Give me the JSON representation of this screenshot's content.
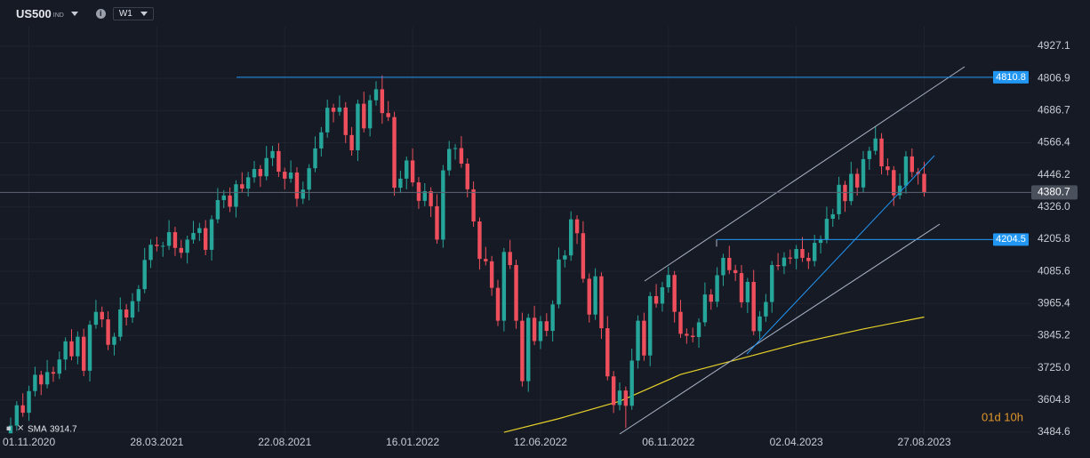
{
  "header": {
    "symbol": "US500",
    "market": "IND",
    "timeframe": "W1"
  },
  "chart_data": {
    "type": "candlestick",
    "categories": [
      null,
      null,
      null,
      "01.11.2020",
      null,
      null,
      null,
      null,
      null,
      null,
      null,
      null,
      null,
      null,
      null,
      null,
      null,
      null,
      null,
      null,
      null,
      null,
      null,
      null,
      "28.03.2021",
      null,
      null,
      null,
      null,
      null,
      null,
      null,
      null,
      null,
      null,
      null,
      null,
      null,
      null,
      null,
      null,
      null,
      null,
      null,
      null,
      "22.08.2021",
      null,
      null,
      null,
      null,
      null,
      null,
      null,
      null,
      null,
      null,
      null,
      null,
      null,
      null,
      null,
      null,
      null,
      null,
      null,
      null,
      "16.01.2022",
      null,
      null,
      null,
      null,
      null,
      null,
      null,
      null,
      null,
      null,
      null,
      null,
      null,
      null,
      null,
      null,
      null,
      null,
      null,
      null,
      "12.06.2022",
      null,
      null,
      null,
      null,
      null,
      null,
      null,
      null,
      null,
      null,
      null,
      null,
      null,
      null,
      null,
      null,
      null,
      null,
      null,
      null,
      "06.11.2022",
      null,
      null,
      null,
      null,
      null,
      null,
      null,
      null,
      null,
      null,
      null,
      null,
      null,
      null,
      null,
      null,
      null,
      null,
      null,
      null,
      "02.04.2023",
      null,
      null,
      null,
      null,
      null,
      null,
      null,
      null,
      null,
      null,
      null,
      null,
      null,
      null,
      null,
      null,
      null,
      null,
      null,
      null,
      "27.08.2023"
    ],
    "open": [
      3480,
      3509,
      3585,
      3557,
      3638,
      3699,
      3663,
      3709,
      3703,
      3756,
      3824,
      3768,
      3841,
      3714,
      3886,
      3934,
      3906,
      3811,
      3841,
      3943,
      3913,
      3974,
      4019,
      4128,
      4185,
      4180,
      4181,
      4232,
      4173,
      4155,
      4204,
      4229,
      4247,
      4166,
      4280,
      4352,
      4369,
      4327,
      4411,
      4395,
      4437,
      4468,
      4441,
      4509,
      4535,
      4458,
      4432,
      4455,
      4357,
      4391,
      4471,
      4545,
      4605,
      4697,
      4682,
      4698,
      4595,
      4538,
      4712,
      4620,
      4725,
      4766,
      4677,
      4662,
      4398,
      4432,
      4500,
      4418,
      4349,
      4385,
      4329,
      4204,
      4463,
      4543,
      4546,
      4488,
      4392,
      4272,
      4132,
      4123,
      4024,
      3901,
      4158,
      4109,
      3901,
      3675,
      3912,
      3825,
      3899,
      3863,
      3962,
      4130,
      4145,
      4280,
      4228,
      4058,
      3924,
      4067,
      3873,
      3693,
      3586,
      3640,
      3583,
      3752,
      3901,
      3771,
      3993,
      3965,
      4026,
      4072,
      3934,
      3852,
      3845,
      3840,
      3895,
      3999,
      3972,
      4071,
      4136,
      4090,
      4079,
      3970,
      4046,
      3862,
      3917,
      3971,
      4109,
      4105,
      4137,
      4133,
      4169,
      4136,
      4124,
      4192,
      4205,
      4282,
      4299,
      4409,
      4348,
      4450,
      4399,
      4505,
      4536,
      4582,
      4478,
      4464,
      4370,
      4406,
      4515,
      4457,
      4450
    ],
    "high": [
      3539,
      3600,
      3630,
      3658,
      3729,
      3714,
      3754,
      3729,
      3786,
      3839,
      3869,
      3861,
      3871,
      3901,
      3979,
      3954,
      3936,
      3856,
      3988,
      3963,
      4004,
      4034,
      4173,
      4205,
      4215,
      4196,
      4277,
      4252,
      4203,
      4219,
      4274,
      4267,
      4277,
      4295,
      4397,
      4389,
      4399,
      4426,
      4456,
      4457,
      4498,
      4483,
      4554,
      4555,
      4565,
      4473,
      4500,
      4475,
      4421,
      4486,
      4590,
      4625,
      4727,
      4712,
      4743,
      4718,
      4625,
      4727,
      4757,
      4745,
      4796,
      4818,
      4722,
      4682,
      4462,
      4515,
      4545,
      4438,
      4415,
      4400,
      4374,
      4483,
      4573,
      4561,
      4591,
      4508,
      4422,
      4287,
      4177,
      4143,
      4054,
      4173,
      4203,
      4129,
      3931,
      3927,
      3957,
      3919,
      3929,
      3977,
      4175,
      4165,
      4310,
      4295,
      4273,
      4078,
      4097,
      4082,
      3918,
      3713,
      3670,
      3655,
      3797,
      3921,
      3931,
      4008,
      4038,
      4046,
      4102,
      4087,
      3979,
      3872,
      3875,
      3910,
      4044,
      4019,
      4101,
      4151,
      4181,
      4110,
      4109,
      4061,
      4091,
      3937,
      4001,
      4124,
      4154,
      4157,
      4167,
      4184,
      4214,
      4156,
      4222,
      4220,
      4327,
      4319,
      4439,
      4424,
      4495,
      4470,
      4535,
      4551,
      4627,
      4602,
      4508,
      4479,
      4451,
      4535,
      4545,
      4472,
      4495
    ],
    "low": [
      3490,
      3490,
      3542,
      3527,
      3618,
      3623,
      3648,
      3673,
      3683,
      3716,
      3753,
      3738,
      3694,
      3674,
      3871,
      3876,
      3791,
      3771,
      3826,
      3883,
      3893,
      3934,
      4004,
      4098,
      4160,
      4140,
      4166,
      4143,
      4135,
      4115,
      4189,
      4199,
      4146,
      4126,
      4265,
      4322,
      4307,
      4287,
      4380,
      4365,
      4417,
      4401,
      4426,
      4479,
      4438,
      4392,
      4417,
      4327,
      4337,
      4351,
      4456,
      4515,
      4585,
      4642,
      4667,
      4565,
      4518,
      4498,
      4605,
      4590,
      4705,
      4637,
      4647,
      4368,
      4378,
      4392,
      4403,
      4319,
      4329,
      4289,
      4189,
      4174,
      4443,
      4503,
      4473,
      4362,
      4252,
      4092,
      4108,
      3994,
      3881,
      3861,
      4094,
      3871,
      3655,
      3635,
      3810,
      3795,
      3843,
      3823,
      3947,
      4100,
      4125,
      4188,
      4043,
      3894,
      3904,
      3833,
      3678,
      3556,
      3566,
      3500,
      3568,
      3722,
      3751,
      3731,
      3950,
      3935,
      4006,
      3894,
      3837,
      3815,
      3820,
      3800,
      3880,
      3942,
      3952,
      4031,
      4075,
      4049,
      3950,
      3930,
      3847,
      3832,
      3897,
      3931,
      4090,
      4075,
      4113,
      4093,
      4121,
      4094,
      4104,
      4152,
      4190,
      4252,
      4279,
      4308,
      4333,
      4369,
      4379,
      4465,
      4521,
      4448,
      4444,
      4330,
      4355,
      4376,
      4437,
      4410,
      4365
    ],
    "close": [
      3509,
      3585,
      3557,
      3638,
      3699,
      3663,
      3709,
      3703,
      3756,
      3824,
      3768,
      3841,
      3714,
      3886,
      3934,
      3906,
      3811,
      3841,
      3943,
      3913,
      3974,
      4019,
      4128,
      4185,
      4180,
      4181,
      4232,
      4173,
      4155,
      4204,
      4229,
      4247,
      4166,
      4280,
      4352,
      4369,
      4327,
      4411,
      4395,
      4437,
      4468,
      4441,
      4509,
      4535,
      4458,
      4432,
      4455,
      4357,
      4391,
      4471,
      4545,
      4605,
      4697,
      4682,
      4698,
      4595,
      4538,
      4712,
      4620,
      4725,
      4766,
      4677,
      4662,
      4398,
      4432,
      4500,
      4418,
      4349,
      4385,
      4329,
      4204,
      4463,
      4543,
      4546,
      4488,
      4392,
      4272,
      4132,
      4123,
      4024,
      3901,
      4158,
      4109,
      3901,
      3675,
      3912,
      3825,
      3899,
      3863,
      3962,
      4130,
      4145,
      4280,
      4228,
      4058,
      3924,
      4067,
      3873,
      3693,
      3586,
      3640,
      3583,
      3752,
      3901,
      3771,
      3993,
      3965,
      4026,
      4072,
      3934,
      3852,
      3845,
      3840,
      3895,
      3999,
      3972,
      4071,
      4136,
      4090,
      4079,
      3970,
      4046,
      3862,
      3917,
      3971,
      4109,
      4105,
      4137,
      4133,
      4169,
      4136,
      4124,
      4192,
      4205,
      4282,
      4299,
      4409,
      4348,
      4450,
      4399,
      4505,
      4536,
      4582,
      4478,
      4464,
      4370,
      4406,
      4515,
      4457,
      4450,
      4380.7
    ],
    "up_color": "#26a69a",
    "down_color": "#ef4f5c",
    "sma": {
      "name": "SMA",
      "color": "#e6d12a",
      "x": [
        81,
        90,
        100,
        110,
        120,
        130,
        140,
        150
      ],
      "values": [
        3484,
        3535,
        3600,
        3700,
        3760,
        3820,
        3870,
        3914.7
      ]
    },
    "hlines": [
      {
        "value": 4810.8,
        "color": "#2196f3"
      },
      {
        "value": 4204.5,
        "color": "#2196f3"
      }
    ],
    "ylim": [
      3471,
      5000
    ],
    "yticks": [
      4927.1,
      4806.9,
      4686.7,
      4566.4,
      4446.2,
      {
        "value": 4326.0,
        "label": "4326.0"
      },
      4205.8,
      4085.6,
      3965.4,
      3845.2,
      {
        "value": 3725.0,
        "label": "3725.0"
      },
      3604.8,
      3484.6
    ],
    "grid": true,
    "countdown": "01d 10h"
  }
}
